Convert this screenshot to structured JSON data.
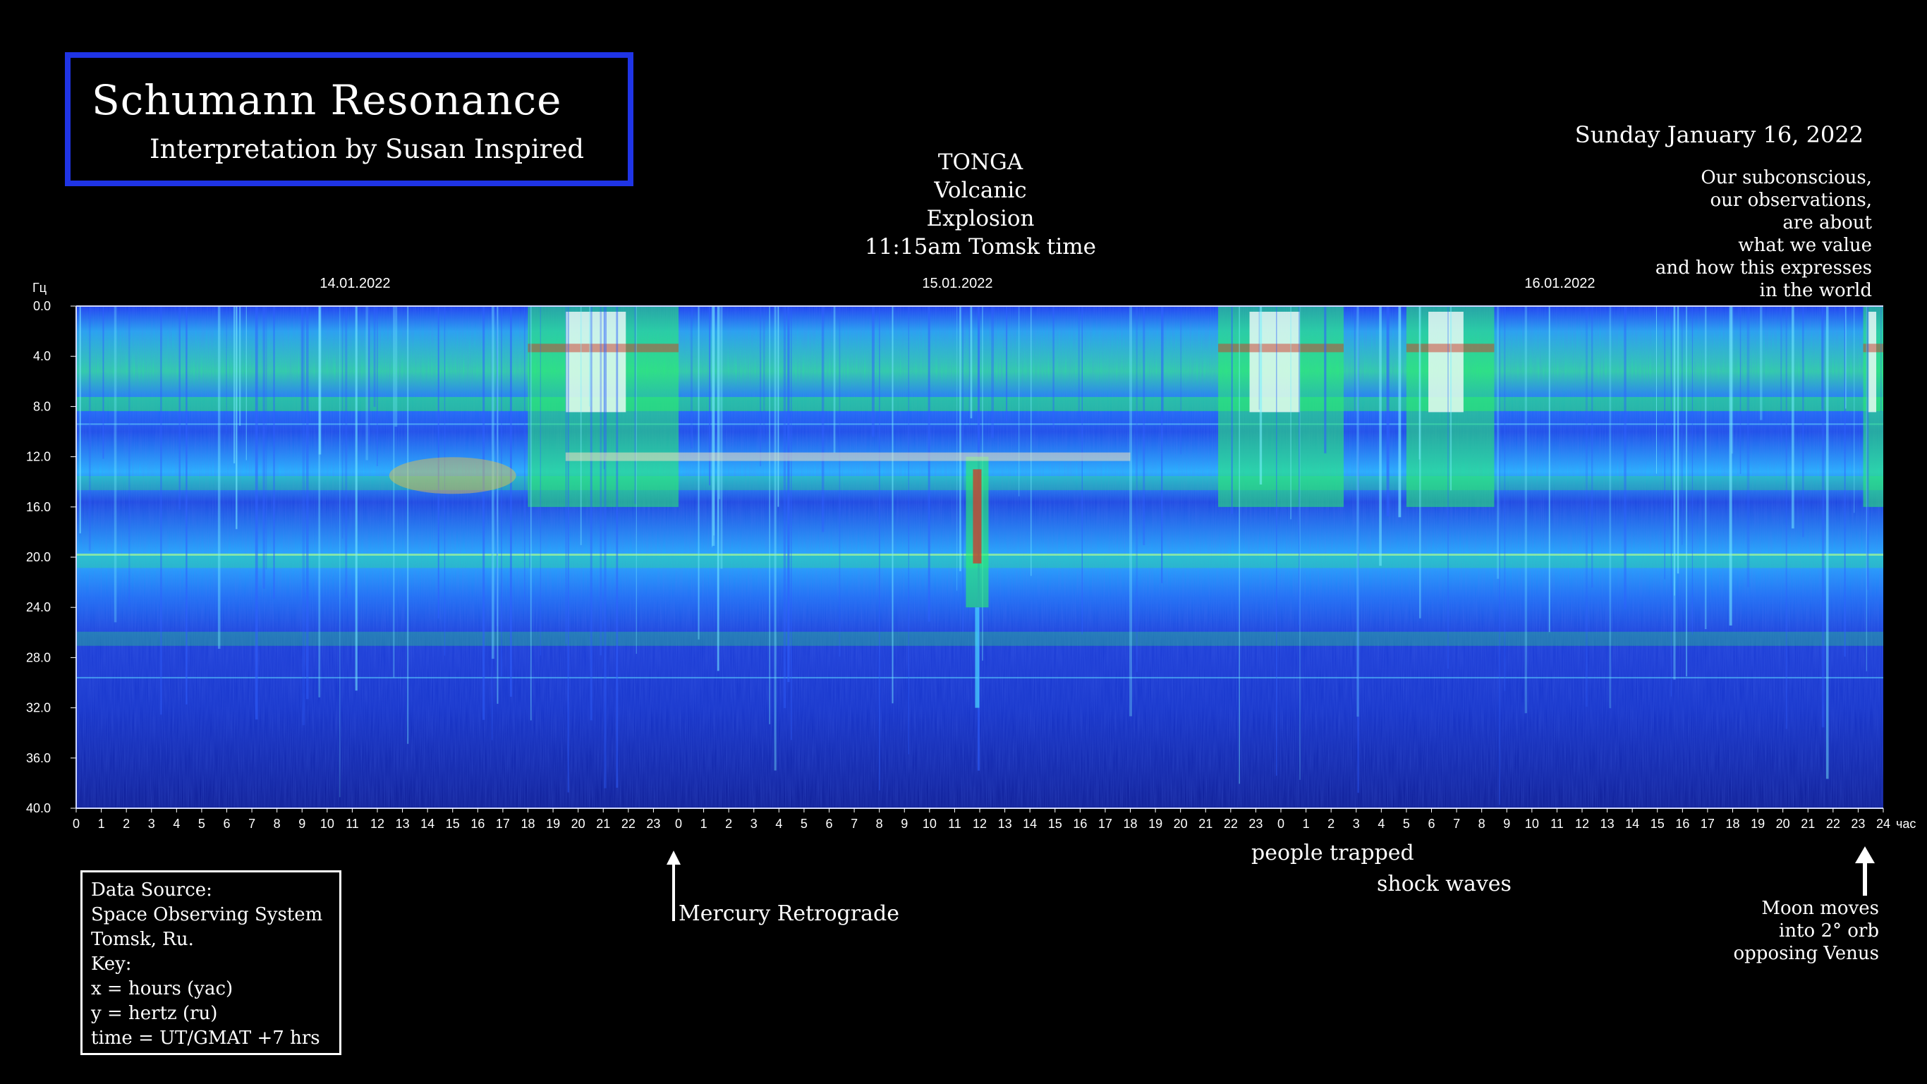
{
  "header": {
    "title": "Schumann Resonance",
    "subtitle": "Interpretation by Susan Inspired"
  },
  "annotations": {
    "tonga": [
      "TONGA",
      "Volcanic",
      "Explosion",
      "11:15am Tomsk time"
    ],
    "date": "Sunday January 16, 2022",
    "subconscious": [
      "Our subconscious,",
      "our observations,",
      "are about",
      "what we value",
      "and how this expresses",
      "in the world"
    ],
    "mercury": "Mercury Retrograde",
    "people_trapped": "people trapped",
    "shock_waves": "shock waves",
    "moon": [
      "Moon moves",
      "into 2° orb",
      "opposing Venus"
    ]
  },
  "legend": [
    "Data Source:",
    "Space Observing System",
    "Tomsk, Ru.",
    "Key:",
    "x = hours (yac)",
    "y = hertz (ru)",
    "time = UT/GMAT +7 hrs"
  ],
  "colors": {
    "title_border": "#1f34e6",
    "background": "#000000",
    "spectrogram_base": "#0a1fd0",
    "band_green": "#2af06a",
    "band_cyan": "#21c8ff",
    "hot_white": "#ffffff",
    "hot_red": "#d03a2a"
  },
  "chart_data": {
    "type": "heatmap",
    "y_unit_label": "Гц",
    "x_unit_label": "час",
    "y_ticks": [
      "0.0",
      "4.0",
      "8.0",
      "12.0",
      "16.0",
      "20.0",
      "24.0",
      "28.0",
      "32.0",
      "36.0",
      "40.0"
    ],
    "ylim": [
      0,
      40
    ],
    "x_ticks": [
      "0",
      "1",
      "2",
      "3",
      "4",
      "5",
      "6",
      "7",
      "8",
      "9",
      "10",
      "11",
      "12",
      "13",
      "14",
      "15",
      "16",
      "17",
      "18",
      "19",
      "20",
      "21",
      "22",
      "23",
      "0",
      "1",
      "2",
      "3",
      "4",
      "5",
      "6",
      "7",
      "8",
      "9",
      "10",
      "11",
      "12",
      "13",
      "14",
      "15",
      "16",
      "17",
      "18",
      "19",
      "20",
      "21",
      "22",
      "23",
      "0",
      "1",
      "2",
      "3",
      "4",
      "5",
      "6",
      "7",
      "8",
      "9",
      "10",
      "11",
      "12",
      "13",
      "14",
      "15",
      "16",
      "17",
      "18",
      "19",
      "20",
      "21",
      "22",
      "23",
      "24"
    ],
    "xlim": [
      0,
      72
    ],
    "date_labels": [
      {
        "label": "14.01.2022",
        "hour": 11
      },
      {
        "label": "15.01.2022",
        "hour": 35
      },
      {
        "label": "16.01.2022",
        "hour": 59
      }
    ],
    "resonance_bands_hz": [
      7.8,
      14.1,
      20.3,
      26.5
    ],
    "events": [
      {
        "name": "Mercury Retrograde",
        "hour": 24
      },
      {
        "name": "TONGA Volcanic Explosion",
        "hour": 35.9
      },
      {
        "name": "people trapped / shock waves",
        "hour": 47.5
      },
      {
        "name": "Moon moves into 2° orb opposing Venus",
        "hour": 71.2
      }
    ],
    "high_activity_hours": [
      [
        18,
        24
      ],
      [
        45.5,
        50.5
      ],
      [
        53,
        56.5
      ],
      [
        71.2,
        72
      ]
    ]
  }
}
